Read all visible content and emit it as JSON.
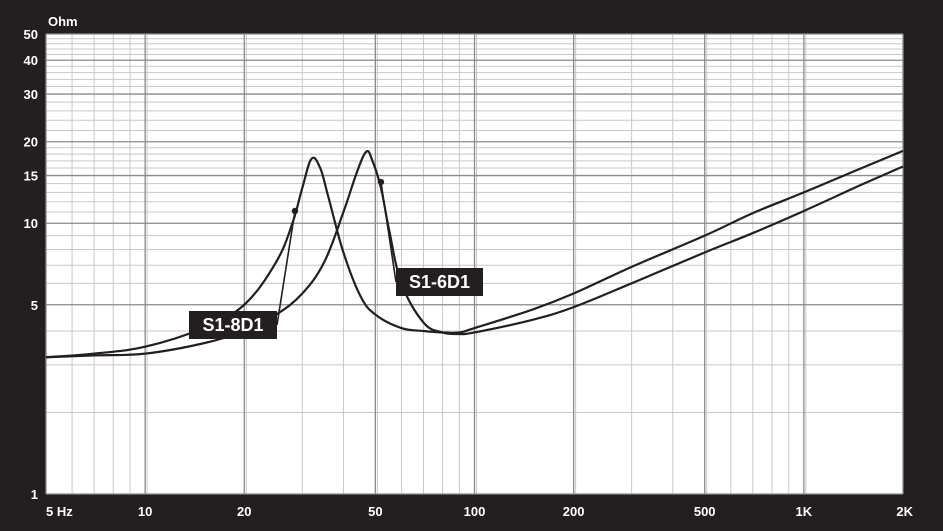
{
  "chart_data": {
    "type": "line",
    "title": "",
    "ylabel": "Ohm",
    "xlabel": "",
    "x_scale": "log",
    "y_scale": "log",
    "xlim": [
      5,
      2000
    ],
    "ylim": [
      1,
      50
    ],
    "grid": true,
    "x_ticks": [
      {
        "value": 5,
        "label": "5 Hz"
      },
      {
        "value": 10,
        "label": "10"
      },
      {
        "value": 20,
        "label": "20"
      },
      {
        "value": 50,
        "label": "50"
      },
      {
        "value": 100,
        "label": "100"
      },
      {
        "value": 200,
        "label": "200"
      },
      {
        "value": 500,
        "label": "500"
      },
      {
        "value": 1000,
        "label": "1K"
      },
      {
        "value": 2000,
        "label": "2K"
      }
    ],
    "y_ticks": [
      {
        "value": 1,
        "label": "1"
      },
      {
        "value": 5,
        "label": "5"
      },
      {
        "value": 10,
        "label": "10"
      },
      {
        "value": 15,
        "label": "15"
      },
      {
        "value": 20,
        "label": "20"
      },
      {
        "value": 30,
        "label": "30"
      },
      {
        "value": 40,
        "label": "40"
      },
      {
        "value": 50,
        "label": "50"
      }
    ],
    "series": [
      {
        "name": "S1-8D1",
        "color": "#231f20",
        "x": [
          5,
          7,
          10,
          15,
          20,
          25,
          28,
          30,
          32,
          34,
          36,
          40,
          45,
          50,
          60,
          70,
          80,
          90,
          100,
          150,
          200,
          300,
          500,
          700,
          1000,
          1500,
          2000
        ],
        "y": [
          3.2,
          3.3,
          3.5,
          4.1,
          5.0,
          7.2,
          10.0,
          13.5,
          17.3,
          16.0,
          12.5,
          7.8,
          5.4,
          4.6,
          4.1,
          4.0,
          3.95,
          3.95,
          4.1,
          4.8,
          5.5,
          6.9,
          9.0,
          10.9,
          13.0,
          16.0,
          18.5
        ]
      },
      {
        "name": "S1-6D1",
        "color": "#231f20",
        "x": [
          5,
          7,
          10,
          15,
          20,
          25,
          30,
          35,
          40,
          44,
          47,
          49,
          52,
          55,
          60,
          70,
          80,
          90,
          100,
          150,
          200,
          300,
          500,
          700,
          1000,
          1500,
          2000
        ],
        "y": [
          3.2,
          3.25,
          3.3,
          3.6,
          4.0,
          4.6,
          5.5,
          7.2,
          11.0,
          15.5,
          18.4,
          17.0,
          13.5,
          9.5,
          6.0,
          4.3,
          3.95,
          3.9,
          3.95,
          4.4,
          4.9,
          6.0,
          7.8,
          9.2,
          11.1,
          13.9,
          16.2
        ]
      }
    ],
    "annotations": [
      {
        "text": "S1-8D1",
        "series": "S1-8D1",
        "anchor": {
          "x": 28.5,
          "y": 11.1
        }
      },
      {
        "text": "S1-6D1",
        "series": "S1-6D1",
        "anchor": {
          "x": 52,
          "y": 14.2
        }
      }
    ],
    "colors": {
      "background": "#231f20",
      "plot_background": "#ffffff",
      "major_grid": "#8a8a8a",
      "minor_grid": "#c8c8c8",
      "curve": "#231f20",
      "label_text": "#ffffff",
      "callout_background": "#231f20",
      "callout_text": "#ffffff"
    }
  }
}
